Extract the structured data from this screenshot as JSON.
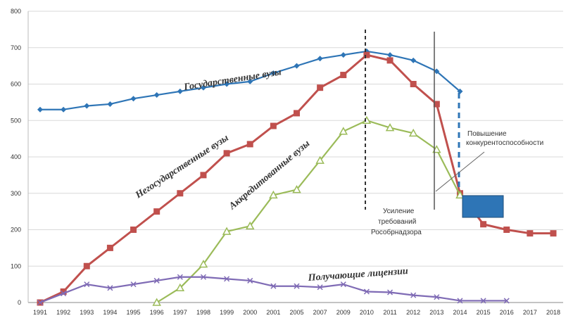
{
  "chart_data": {
    "type": "line",
    "x": [
      "1991",
      "1992",
      "1993",
      "1994",
      "1995",
      "1996",
      "1997",
      "1998",
      "1999",
      "2000",
      "2001",
      "2005",
      "2007",
      "2009",
      "2010",
      "2011",
      "2012",
      "2013",
      "2014",
      "2015",
      "2016",
      "2017",
      "2018"
    ],
    "ylim": [
      0,
      800
    ],
    "yticks": [
      0,
      100,
      200,
      300,
      400,
      500,
      600,
      700,
      800
    ],
    "grid": true,
    "series": [
      {
        "name": "Государственные вузы",
        "color": "#2e75b6",
        "marker": "diamond",
        "values": [
          530,
          530,
          540,
          545,
          560,
          570,
          580,
          590,
          600,
          607,
          630,
          650,
          670,
          680,
          690,
          680,
          665,
          635,
          580,
          null,
          null,
          null,
          null
        ]
      },
      {
        "name": "Негосударственные вузы",
        "color": "#c0504d",
        "marker": "square",
        "values": [
          0,
          30,
          100,
          150,
          200,
          250,
          300,
          350,
          410,
          435,
          485,
          520,
          590,
          625,
          680,
          665,
          600,
          545,
          300,
          215,
          200,
          190,
          190
        ]
      },
      {
        "name": "Аккредитованные вузы",
        "color": "#9bbb59",
        "marker": "triangle",
        "values": [
          null,
          null,
          null,
          null,
          null,
          0,
          40,
          105,
          195,
          210,
          295,
          310,
          390,
          470,
          500,
          480,
          465,
          420,
          295,
          null,
          null,
          null,
          null
        ]
      },
      {
        "name": "Получающие лицензии",
        "color": "#7f6bb5",
        "marker": "cross",
        "values": [
          0,
          25,
          50,
          40,
          50,
          60,
          70,
          70,
          65,
          60,
          45,
          45,
          42,
          50,
          30,
          28,
          20,
          15,
          5,
          5,
          5,
          null,
          null
        ]
      }
    ],
    "annotations": {
      "tightening": "Усиление требований Рособрнадзора",
      "competitiveness": "Повышение конкурентоспособности"
    }
  }
}
